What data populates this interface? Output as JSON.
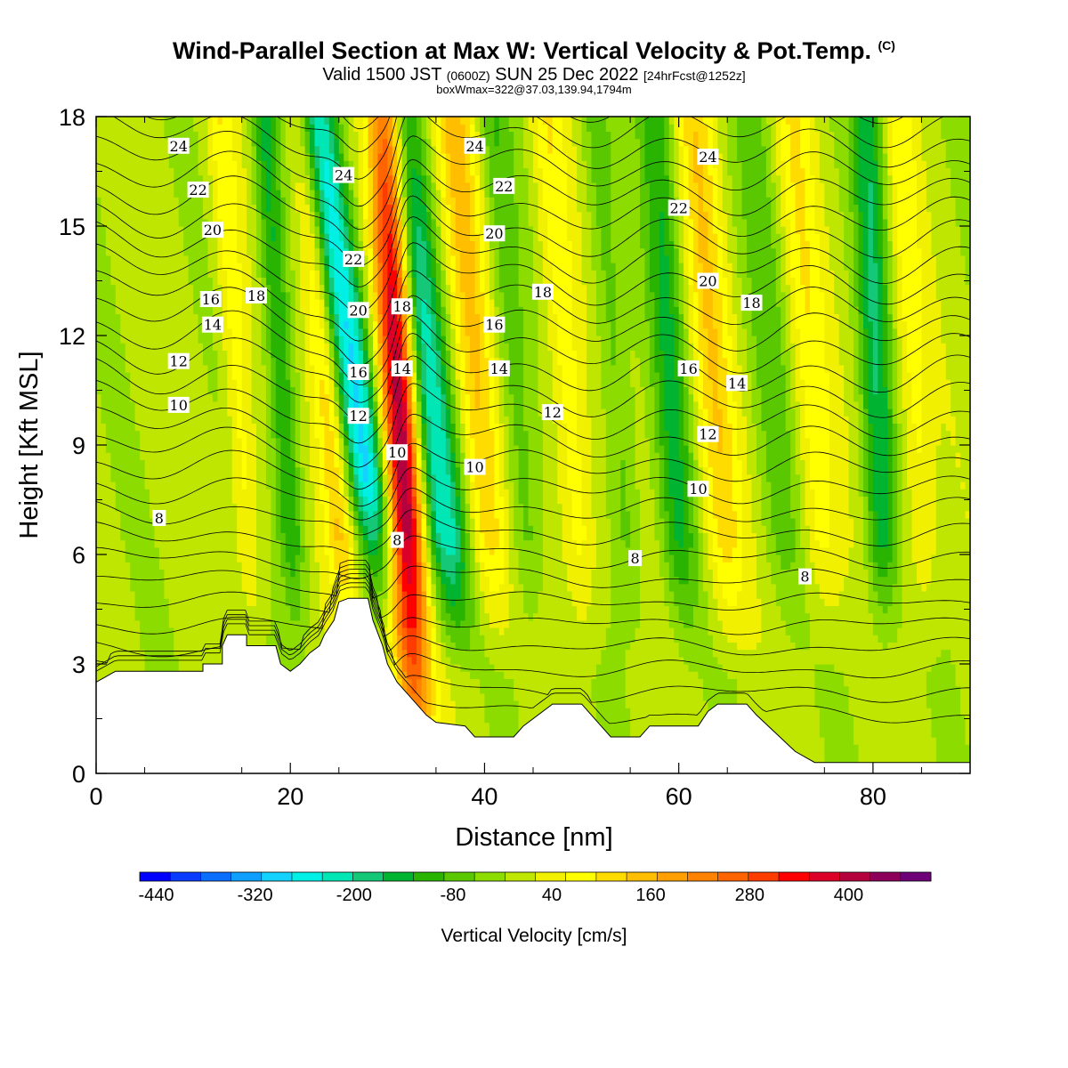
{
  "title": {
    "main": "Wind-Parallel Section at Max W: Vertical Velocity & Pot.Temp.",
    "copyright": "(C)",
    "valid_prefix": "Valid 1500 JST",
    "valid_utc": "(0600Z)",
    "valid_date": "SUN 25 Dec 2022",
    "forecast": "[24hrFcst@1252z]",
    "boxmax": "boxWmax=322@37.03,139.94,1794m"
  },
  "chart_data": {
    "type": "heatmap",
    "title": "Wind-Parallel Section at Max W: Vertical Velocity & Pot.Temp.",
    "xlabel": "Distance [nm]",
    "ylabel": "Height [Kft MSL]",
    "xlim": [
      0,
      90
    ],
    "ylim": [
      0,
      18
    ],
    "xticks": [
      0,
      20,
      40,
      60,
      80
    ],
    "yticks": [
      0,
      3,
      6,
      9,
      12,
      15,
      18
    ],
    "colorbar": {
      "label": "Vertical Velocity [cm/s]",
      "min": -460,
      "max": 500,
      "step": 40,
      "tick_labels": [
        "-440",
        "-320",
        "-200",
        "-80",
        "40",
        "160",
        "280",
        "400"
      ],
      "colors": [
        "#0000ff",
        "#0a3cff",
        "#0a6eff",
        "#0fa0ff",
        "#14d2ff",
        "#00f0e6",
        "#00e6b4",
        "#14c878",
        "#00b432",
        "#28b400",
        "#5ac800",
        "#8cdc00",
        "#bee600",
        "#f0f000",
        "#ffff00",
        "#ffdc00",
        "#ffbe00",
        "#ffa000",
        "#ff8200",
        "#ff6400",
        "#ff3c00",
        "#ff0000",
        "#dc0028",
        "#b4003c",
        "#8c005a",
        "#6e0078"
      ]
    },
    "terrain_kft": [
      [
        0,
        2.5
      ],
      [
        2,
        2.8
      ],
      [
        11,
        2.8
      ],
      [
        11,
        3.0
      ],
      [
        13,
        3.0
      ],
      [
        13,
        3.5
      ],
      [
        13.5,
        3.8
      ],
      [
        15.5,
        3.8
      ],
      [
        15.5,
        3.5
      ],
      [
        18.5,
        3.5
      ],
      [
        19,
        3.0
      ],
      [
        20,
        2.8
      ],
      [
        21,
        3.0
      ],
      [
        22,
        3.3
      ],
      [
        23,
        3.5
      ],
      [
        23.5,
        3.8
      ],
      [
        24.5,
        4.2
      ],
      [
        25,
        4.7
      ],
      [
        26,
        4.8
      ],
      [
        28,
        4.8
      ],
      [
        28.5,
        4.2
      ],
      [
        29.5,
        3.5
      ],
      [
        30,
        3.0
      ],
      [
        31,
        2.5
      ],
      [
        32,
        2.2
      ],
      [
        33,
        1.9
      ],
      [
        34,
        1.6
      ],
      [
        35,
        1.4
      ],
      [
        38,
        1.3
      ],
      [
        39,
        1.0
      ],
      [
        43,
        1.0
      ],
      [
        44,
        1.3
      ],
      [
        47,
        1.9
      ],
      [
        50,
        1.9
      ],
      [
        51,
        1.6
      ],
      [
        52,
        1.3
      ],
      [
        53,
        1.0
      ],
      [
        56,
        1.0
      ],
      [
        57,
        1.3
      ],
      [
        62,
        1.3
      ],
      [
        63,
        1.7
      ],
      [
        64,
        1.9
      ],
      [
        67,
        1.9
      ],
      [
        68,
        1.6
      ],
      [
        70,
        1.1
      ],
      [
        72,
        0.6
      ],
      [
        74,
        0.3
      ],
      [
        90,
        0.3
      ]
    ],
    "theta_contour_labels": [
      {
        "x": 8.5,
        "y": 17.2,
        "v": "24"
      },
      {
        "x": 10.5,
        "y": 16.0,
        "v": "22"
      },
      {
        "x": 12,
        "y": 14.9,
        "v": "20"
      },
      {
        "x": 11.8,
        "y": 13.0,
        "v": "16"
      },
      {
        "x": 16.5,
        "y": 13.1,
        "v": "18"
      },
      {
        "x": 12,
        "y": 12.3,
        "v": "14"
      },
      {
        "x": 8.5,
        "y": 11.3,
        "v": "12"
      },
      {
        "x": 8.5,
        "y": 10.1,
        "v": "10"
      },
      {
        "x": 6.5,
        "y": 7.0,
        "v": "8"
      },
      {
        "x": 25.5,
        "y": 16.4,
        "v": "24"
      },
      {
        "x": 26.5,
        "y": 14.1,
        "v": "22"
      },
      {
        "x": 27,
        "y": 12.7,
        "v": "20"
      },
      {
        "x": 27,
        "y": 11.0,
        "v": "16"
      },
      {
        "x": 27,
        "y": 9.8,
        "v": "12"
      },
      {
        "x": 31.5,
        "y": 12.8,
        "v": "18"
      },
      {
        "x": 31.5,
        "y": 11.1,
        "v": "14"
      },
      {
        "x": 31,
        "y": 8.8,
        "v": "10"
      },
      {
        "x": 31,
        "y": 6.4,
        "v": "8"
      },
      {
        "x": 39,
        "y": 17.2,
        "v": "24"
      },
      {
        "x": 42,
        "y": 16.1,
        "v": "22"
      },
      {
        "x": 41,
        "y": 14.8,
        "v": "20"
      },
      {
        "x": 41,
        "y": 12.3,
        "v": "16"
      },
      {
        "x": 41.5,
        "y": 11.1,
        "v": "14"
      },
      {
        "x": 39,
        "y": 8.4,
        "v": "10"
      },
      {
        "x": 46,
        "y": 13.2,
        "v": "18"
      },
      {
        "x": 47,
        "y": 9.9,
        "v": "12"
      },
      {
        "x": 55.5,
        "y": 5.9,
        "v": "8"
      },
      {
        "x": 60,
        "y": 15.5,
        "v": "22"
      },
      {
        "x": 63,
        "y": 16.9,
        "v": "24"
      },
      {
        "x": 63,
        "y": 13.5,
        "v": "20"
      },
      {
        "x": 67.5,
        "y": 12.9,
        "v": "18"
      },
      {
        "x": 61,
        "y": 11.1,
        "v": "16"
      },
      {
        "x": 66,
        "y": 10.7,
        "v": "14"
      },
      {
        "x": 63,
        "y": 9.3,
        "v": "12"
      },
      {
        "x": 62,
        "y": 7.8,
        "v": "10"
      },
      {
        "x": 73,
        "y": 5.4,
        "v": "8"
      }
    ]
  }
}
